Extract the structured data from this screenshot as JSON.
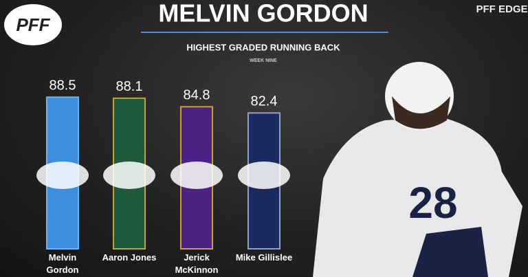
{
  "branding": {
    "logo": "PFF",
    "edge": "PFF EDGE"
  },
  "chart_data": {
    "type": "bar",
    "title": "MELVIN GORDON",
    "subtitle": "HIGHEST GRADED RUNNING BACK",
    "note": "WEEK NINE",
    "categories": [
      "Melvin Gordon",
      "Aaron Jones",
      "Jerick McKinnon",
      "Mike Gillislee"
    ],
    "values": [
      88.5,
      88.1,
      84.8,
      82.4
    ],
    "colors": [
      "#3b8fdc",
      "#1f5a3c",
      "#4a2383",
      "#1b2a5e"
    ],
    "outline_colors": [
      "#6fb3ee",
      "#c9a227",
      "#c9a227",
      "#8fa3c8"
    ],
    "ylim": [
      30,
      100
    ]
  }
}
